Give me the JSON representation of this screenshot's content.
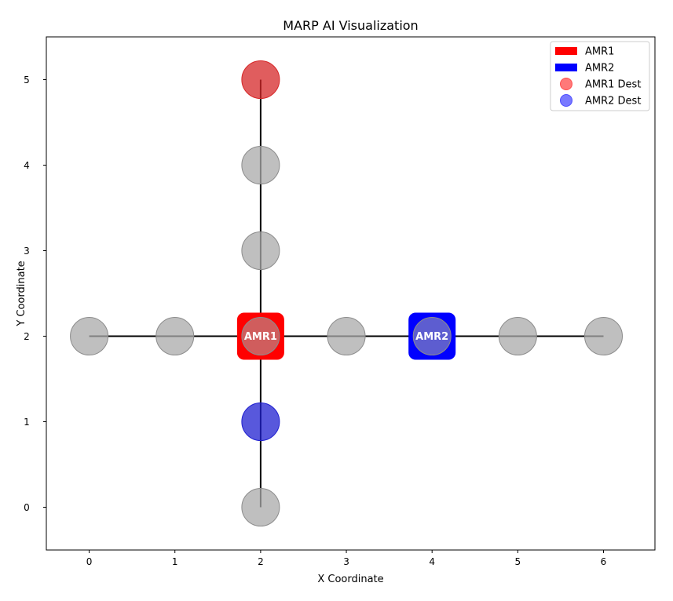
{
  "chart_data": {
    "type": "scatter",
    "title": "MARP AI Visualization",
    "xlabel": "X Coordinate",
    "ylabel": "Y Coordinate",
    "xlim": [
      -0.5,
      6.6
    ],
    "ylim": [
      -0.5,
      5.5
    ],
    "xticks": [
      0,
      1,
      2,
      3,
      4,
      5,
      6
    ],
    "yticks": [
      0,
      1,
      2,
      3,
      4,
      5
    ],
    "grid": false,
    "legend_position": "top-right",
    "paths": [
      {
        "from": [
          0,
          2
        ],
        "to": [
          6,
          2
        ]
      },
      {
        "from": [
          2,
          0
        ],
        "to": [
          2,
          5
        ]
      }
    ],
    "nodes": [
      {
        "x": 0,
        "y": 2
      },
      {
        "x": 1,
        "y": 2
      },
      {
        "x": 3,
        "y": 2
      },
      {
        "x": 5,
        "y": 2
      },
      {
        "x": 6,
        "y": 2
      },
      {
        "x": 2,
        "y": 0
      },
      {
        "x": 2,
        "y": 2
      },
      {
        "x": 2,
        "y": 3
      },
      {
        "x": 2,
        "y": 4
      },
      {
        "x": 4,
        "y": 2
      }
    ],
    "node_color": "#a9a9a9",
    "robots": [
      {
        "name": "AMR1",
        "x": 2,
        "y": 2,
        "color": "#ff0000"
      },
      {
        "name": "AMR2",
        "x": 4,
        "y": 2,
        "color": "#0000ff"
      }
    ],
    "destinations": [
      {
        "name": "AMR1 Dest",
        "x": 2,
        "y": 5,
        "color": "#d62728"
      },
      {
        "name": "AMR2 Dest",
        "x": 2,
        "y": 1,
        "color": "#2020d0"
      }
    ],
    "legend": [
      {
        "label": "AMR1",
        "kind": "patch",
        "color": "#ff0000"
      },
      {
        "label": "AMR2",
        "kind": "patch",
        "color": "#0000ff"
      },
      {
        "label": "AMR1 Dest",
        "kind": "marker",
        "color": "#ff4c4c"
      },
      {
        "label": "AMR2 Dest",
        "kind": "marker",
        "color": "#4c4cff"
      }
    ]
  }
}
